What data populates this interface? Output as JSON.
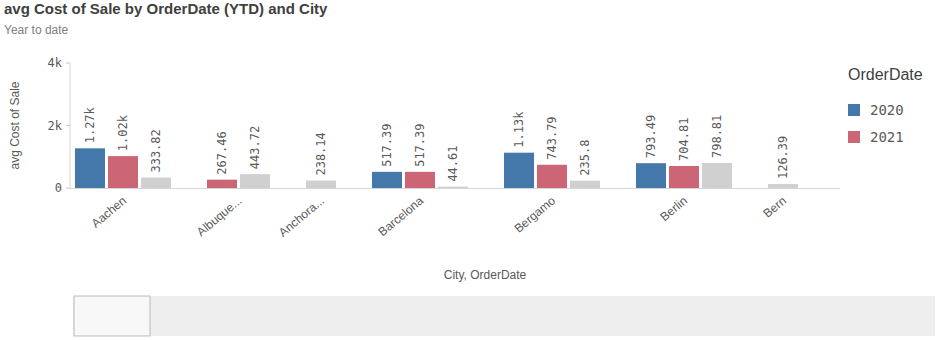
{
  "chart_data": {
    "type": "bar",
    "title": "avg Cost of Sale by OrderDate (YTD) and City",
    "subtitle": "Year to date",
    "y_label": "avg Cost of Sale",
    "x_label": "City, OrderDate",
    "legend_title": "OrderDate",
    "categories": [
      "Aachen",
      "Albuque...",
      "Anchora...",
      "Barcelona",
      "Bergamo",
      "Berlin",
      "Bern"
    ],
    "series": [
      {
        "name": "2020",
        "color": "#4477aa",
        "values": [
          1270,
          null,
          null,
          517.39,
          1130,
          793.49,
          null
        ],
        "value_labels": [
          "1.27k",
          null,
          null,
          "517.39",
          "1.13k",
          "793.49",
          null
        ]
      },
      {
        "name": "2021",
        "color": "#cc6677",
        "values": [
          1020,
          267.46,
          null,
          517.39,
          743.79,
          704.81,
          null
        ],
        "value_labels": [
          "1.02k",
          "267.46",
          null,
          "517.39",
          "743.79",
          "704.81",
          null
        ]
      },
      {
        "color": "#d0d0d0",
        "values": [
          333.82,
          443.72,
          238.14,
          44.61,
          235.8,
          798.81,
          126.39
        ]
      }
    ],
    "ylim": [
      0,
      4000
    ],
    "yticks": [
      0,
      {
        "value": 2000,
        "label": "2k"
      },
      {
        "value": 4000,
        "label": "4k"
      }
    ],
    "grid": false,
    "legend": "right",
    "data_labels": true
  }
}
